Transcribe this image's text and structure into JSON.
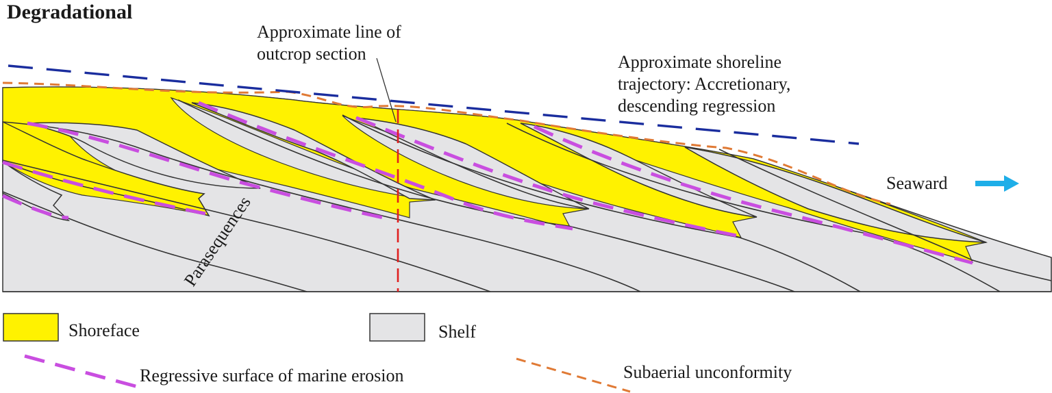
{
  "title": "Degradational",
  "annotations": {
    "outcrop_line": [
      "Approximate line of",
      "outcrop section"
    ],
    "shoreline_trajectory": [
      "Approximate shoreline",
      "trajectory: Accretionary,",
      "descending regression"
    ],
    "seaward": "Seaward",
    "parasequences": "Parasequences"
  },
  "legend": {
    "shoreface": "Shoreface",
    "shelf": "Shelf",
    "rsme": "Regressive surface of marine erosion",
    "subaerial": "Subaerial unconformity"
  },
  "colors": {
    "shoreface": "#fff200",
    "shelf": "#e4e4e6",
    "rsme": "#c94ee0",
    "subaerial_unconformity": "#e07a35",
    "shoreline_trajectory": "#1a2d9e",
    "outcrop_line": "#e02020",
    "seaward_arrow": "#1eaee8"
  },
  "icons": {
    "seaward": "right-arrow-icon"
  }
}
